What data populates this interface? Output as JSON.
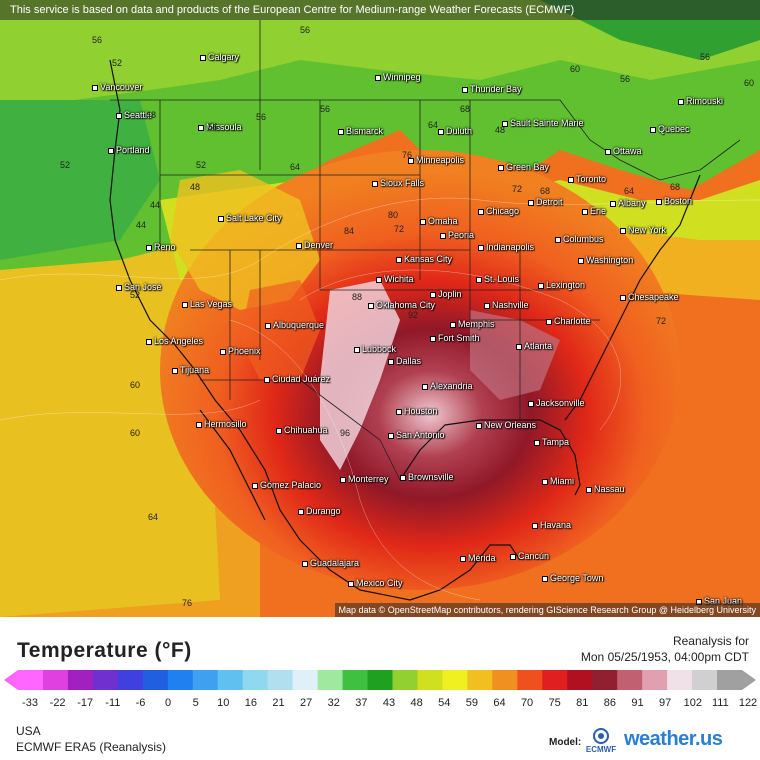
{
  "attribution_top": "This service is based on data and products of the European Centre for Medium-range Weather Forecasts (ECMWF)",
  "attribution_bottom": "Map data © OpenStreetMap contributors, rendering GIScience Research Group @ Heidelberg University",
  "legend": {
    "title": "Temperature (°F)",
    "ticks": [
      "-33",
      "-22",
      "-17",
      "-11",
      "-6",
      "0",
      "5",
      "10",
      "16",
      "21",
      "27",
      "32",
      "37",
      "43",
      "48",
      "54",
      "59",
      "64",
      "70",
      "75",
      "81",
      "86",
      "91",
      "97",
      "102",
      "111",
      "122"
    ],
    "colors": [
      "#ff66ff",
      "#e040e0",
      "#a020c0",
      "#7030d0",
      "#4040e0",
      "#2060e0",
      "#2080f0",
      "#40a0f0",
      "#60c0f0",
      "#90d8f0",
      "#b0e0f0",
      "#e0f0f8",
      "#a0e8a0",
      "#40c040",
      "#20a020",
      "#90d030",
      "#d0e020",
      "#f0f020",
      "#f0c020",
      "#f09020",
      "#f05020",
      "#e02020",
      "#b01020",
      "#902030",
      "#c06070",
      "#e0a0b0",
      "#f0e0e8",
      "#d0d0d0",
      "#a0a0a0"
    ]
  },
  "reanalysis": {
    "label": "Reanalysis for",
    "date": "Mon 05/25/1953, 04:00pm CDT"
  },
  "region": "USA",
  "model": "ECMWF ERA5 (Reanalysis)",
  "model_label": "Model:",
  "logos": {
    "ecmwf": "ECMWF",
    "weather_us": "weather.us"
  },
  "cities": [
    {
      "name": "Vancouver"
    },
    {
      "name": "Seattle"
    },
    {
      "name": "Portland"
    },
    {
      "name": "Calgary"
    },
    {
      "name": "Missoula"
    },
    {
      "name": "Winnipeg"
    },
    {
      "name": "Thunder Bay"
    },
    {
      "name": "Sault Sainte Marie"
    },
    {
      "name": "Rimouski"
    },
    {
      "name": "Quebec"
    },
    {
      "name": "Ottawa"
    },
    {
      "name": "Bismarck"
    },
    {
      "name": "Duluth"
    },
    {
      "name": "Minneapolis"
    },
    {
      "name": "Green Bay"
    },
    {
      "name": "Toronto"
    },
    {
      "name": "Albany"
    },
    {
      "name": "Boston"
    },
    {
      "name": "Sioux Falls"
    },
    {
      "name": "Detroit"
    },
    {
      "name": "Erie"
    },
    {
      "name": "Chicago"
    },
    {
      "name": "New York"
    },
    {
      "name": "Salt Lake City"
    },
    {
      "name": "Omaha"
    },
    {
      "name": "Peoria"
    },
    {
      "name": "Indianapolis"
    },
    {
      "name": "Columbus"
    },
    {
      "name": "Reno"
    },
    {
      "name": "Denver"
    },
    {
      "name": "Kansas City"
    },
    {
      "name": "Washington"
    },
    {
      "name": "San José"
    },
    {
      "name": "Wichita"
    },
    {
      "name": "St. Louis"
    },
    {
      "name": "Lexington"
    },
    {
      "name": "Las Vegas"
    },
    {
      "name": "Joplin"
    },
    {
      "name": "Chesapeake"
    },
    {
      "name": "Oklahoma City"
    },
    {
      "name": "Nashville"
    },
    {
      "name": "Albuquerque"
    },
    {
      "name": "Memphis"
    },
    {
      "name": "Charlotte"
    },
    {
      "name": "Los Angeles"
    },
    {
      "name": "Fort Smith"
    },
    {
      "name": "Lubbock"
    },
    {
      "name": "Atlanta"
    },
    {
      "name": "Phoenix"
    },
    {
      "name": "Dallas"
    },
    {
      "name": "Tijuana"
    },
    {
      "name": "Ciudad Juárez"
    },
    {
      "name": "Alexandria"
    },
    {
      "name": "Jacksonville"
    },
    {
      "name": "Houston"
    },
    {
      "name": "Hermosillo"
    },
    {
      "name": "New Orleans"
    },
    {
      "name": "Chihuahua"
    },
    {
      "name": "San Antonio"
    },
    {
      "name": "Tampa"
    },
    {
      "name": "Brownsville"
    },
    {
      "name": "Miami"
    },
    {
      "name": "Nassau"
    },
    {
      "name": "Gómez Palacio"
    },
    {
      "name": "Monterrey"
    },
    {
      "name": "Durango"
    },
    {
      "name": "Havana"
    },
    {
      "name": "Guadalajara"
    },
    {
      "name": "Mérida"
    },
    {
      "name": "Cancún"
    },
    {
      "name": "George Town"
    },
    {
      "name": "Mexico City"
    },
    {
      "name": "San Juan"
    }
  ],
  "isotherm_labels": [
    "52",
    "48",
    "56",
    "52",
    "44",
    "52",
    "56",
    "60",
    "56",
    "44",
    "56",
    "48",
    "64",
    "56",
    "52",
    "60",
    "56",
    "48",
    "64",
    "68",
    "68",
    "72",
    "76",
    "80",
    "84",
    "88",
    "92",
    "96",
    "60",
    "64",
    "72",
    "76",
    "56",
    "60",
    "64",
    "68",
    "72"
  ]
}
